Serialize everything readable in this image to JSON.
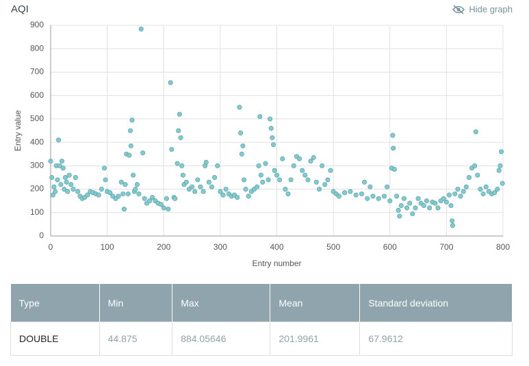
{
  "chart_data": {
    "type": "scatter",
    "title": "AQI",
    "toggle": "Hide graph",
    "x_label": "Entry number",
    "y_label": "Entry value",
    "xlim": [
      0,
      800
    ],
    "ylim": [
      0,
      900
    ],
    "xticks": [
      0,
      100,
      200,
      300,
      400,
      500,
      600,
      700,
      800
    ],
    "yticks": [
      0,
      100,
      200,
      300,
      400,
      500,
      600,
      700,
      800,
      900
    ],
    "grid": true,
    "x": [
      0,
      2,
      4,
      6,
      8,
      10,
      12,
      14,
      16,
      18,
      20,
      22,
      24,
      26,
      28,
      30,
      33,
      36,
      40,
      44,
      48,
      52,
      56,
      60,
      65,
      70,
      75,
      80,
      85,
      90,
      95,
      97,
      100,
      105,
      110,
      115,
      120,
      125,
      128,
      130,
      132,
      134,
      137,
      139,
      141,
      142,
      144,
      146,
      148,
      150,
      153,
      156,
      160,
      163,
      166,
      170,
      175,
      180,
      185,
      190,
      195,
      200,
      205,
      208,
      212,
      214,
      218,
      220,
      224,
      226,
      228,
      230,
      232,
      234,
      236,
      240,
      245,
      250,
      255,
      260,
      265,
      270,
      273,
      275,
      280,
      285,
      290,
      295,
      300,
      305,
      310,
      315,
      320,
      325,
      330,
      334,
      336,
      338,
      340,
      342,
      345,
      350,
      355,
      360,
      365,
      368,
      370,
      372,
      375,
      380,
      385,
      388,
      390,
      392,
      394,
      396,
      400,
      405,
      410,
      415,
      420,
      425,
      430,
      435,
      440,
      445,
      450,
      455,
      460,
      465,
      470,
      475,
      480,
      485,
      490,
      495,
      500,
      505,
      510,
      520,
      530,
      540,
      550,
      555,
      560,
      565,
      570,
      580,
      590,
      595,
      600,
      603,
      605,
      606,
      608,
      612,
      615,
      617,
      620,
      625,
      630,
      635,
      640,
      645,
      650,
      655,
      660,
      665,
      670,
      675,
      680,
      685,
      690,
      695,
      700,
      705,
      708,
      710,
      711,
      715,
      720,
      725,
      730,
      735,
      740,
      745,
      750,
      752,
      755,
      760,
      765,
      770,
      775,
      780,
      785,
      790,
      793,
      795,
      797,
      799
    ],
    "series": [
      {
        "color": "#80cbd0",
        "values": [
          320,
          250,
          175,
          210,
          190,
          300,
          240,
          410,
          300,
          220,
          320,
          290,
          200,
          250,
          230,
          190,
          260,
          220,
          200,
          250,
          190,
          170,
          160,
          165,
          175,
          190,
          185,
          180,
          175,
          200,
          290,
          240,
          190,
          185,
          170,
          160,
          170,
          230,
          180,
          115,
          220,
          350,
          180,
          345,
          450,
          385,
          495,
          260,
          190,
          200,
          220,
          180,
          884,
          355,
          160,
          140,
          150,
          165,
          150,
          140,
          135,
          120,
          160,
          115,
          655,
          370,
          165,
          160,
          310,
          450,
          520,
          420,
          300,
          260,
          220,
          230,
          200,
          210,
          190,
          240,
          210,
          190,
          300,
          315,
          230,
          210,
          250,
          300,
          190,
          175,
          200,
          180,
          170,
          175,
          165,
          550,
          440,
          350,
          385,
          240,
          200,
          170,
          190,
          200,
          210,
          300,
          510,
          260,
          230,
          310,
          240,
          500,
          460,
          420,
          390,
          280,
          260,
          240,
          330,
          200,
          180,
          240,
          300,
          340,
          330,
          280,
          260,
          240,
          320,
          335,
          230,
          200,
          300,
          220,
          240,
          280,
          190,
          180,
          170,
          185,
          190,
          175,
          180,
          230,
          160,
          210,
          170,
          160,
          170,
          210,
          150,
          290,
          430,
          375,
          285,
          170,
          110,
          85,
          130,
          160,
          120,
          140,
          95,
          120,
          160,
          140,
          130,
          150,
          120,
          145,
          140,
          120,
          150,
          160,
          145,
          175,
          130,
          65,
          45,
          180,
          200,
          170,
          190,
          210,
          250,
          290,
          300,
          445,
          260,
          200,
          180,
          210,
          190,
          180,
          185,
          200,
          280,
          300,
          360,
          225
        ]
      }
    ]
  },
  "table": {
    "header": [
      "Type",
      "Min",
      "Max",
      "Mean",
      "Standard deviation"
    ],
    "rows": [
      [
        "DOUBLE",
        "44.875",
        "884.05646",
        "201.9961",
        "67.9612"
      ]
    ]
  }
}
